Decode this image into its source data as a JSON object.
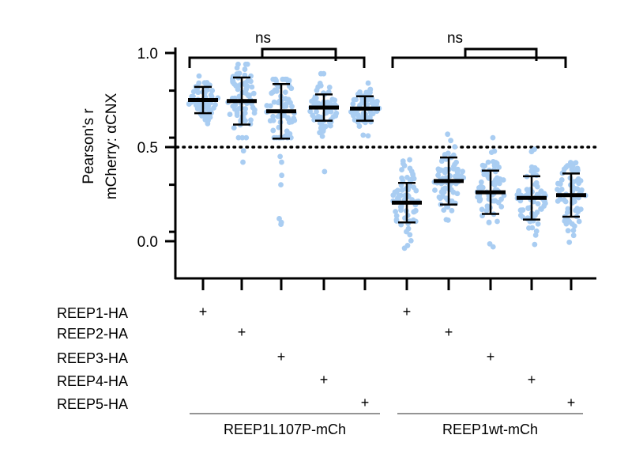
{
  "chart_data": {
    "type": "scatter",
    "ylabel_line1": "Pearson's r",
    "ylabel_line2": "mCherry: αCNX",
    "ylim": [
      -0.2,
      1.0
    ],
    "yticks": [
      {
        "value": 1.0,
        "label": "1.0"
      },
      {
        "value": 0.5,
        "label": "0.5"
      },
      {
        "value": 0.0,
        "label": "0.0"
      }
    ],
    "reference_line": 0.5,
    "point_color": "#a9cdf2",
    "series": [
      {
        "mean": 0.75,
        "sd": 0.07,
        "min": 0.52,
        "max": 0.95,
        "outliers": []
      },
      {
        "mean": 0.745,
        "sd": 0.125,
        "min": 0.55,
        "max": 0.94,
        "outliers": [
          0.42,
          0.48
        ]
      },
      {
        "mean": 0.69,
        "sd": 0.145,
        "min": 0.55,
        "max": 0.86,
        "outliers": [
          0.45,
          0.42,
          0.35,
          0.3,
          0.12,
          0.1,
          0.09
        ]
      },
      {
        "mean": 0.71,
        "sd": 0.07,
        "min": 0.5,
        "max": 0.89,
        "outliers": [
          0.37
        ]
      },
      {
        "mean": 0.705,
        "sd": 0.065,
        "min": 0.56,
        "max": 0.84,
        "outliers": []
      },
      {
        "mean": 0.205,
        "sd": 0.105,
        "min": -0.06,
        "max": 0.48,
        "outliers": []
      },
      {
        "mean": 0.32,
        "sd": 0.125,
        "min": -0.06,
        "max": 0.61,
        "outliers": []
      },
      {
        "mean": 0.26,
        "sd": 0.115,
        "min": -0.03,
        "max": 0.55,
        "outliers": []
      },
      {
        "mean": 0.23,
        "sd": 0.115,
        "min": -0.03,
        "max": 0.53,
        "outliers": []
      },
      {
        "mean": 0.245,
        "sd": 0.115,
        "min": -0.03,
        "max": 0.53,
        "outliers": []
      }
    ],
    "significance": [
      {
        "label": "ns",
        "group": 0
      },
      {
        "label": "ns",
        "group": 1
      }
    ],
    "rows": [
      {
        "label": "REEP1-HA",
        "plus": "+",
        "columns": [
          0,
          5
        ]
      },
      {
        "label": "REEP2-HA",
        "plus": "+",
        "columns": [
          1,
          6
        ]
      },
      {
        "label": "REEP3-HA",
        "plus": "+",
        "columns": [
          2,
          7
        ]
      },
      {
        "label": "REEP4-HA",
        "plus": "+",
        "columns": [
          3,
          8
        ]
      },
      {
        "label": "REEP5-HA",
        "plus": "+",
        "columns": [
          4,
          9
        ]
      }
    ],
    "groups": [
      {
        "label": "REEP1L107P-mCh",
        "columns": [
          0,
          4
        ]
      },
      {
        "label": "REEP1wt-mCh",
        "columns": [
          5,
          9
        ]
      }
    ]
  }
}
